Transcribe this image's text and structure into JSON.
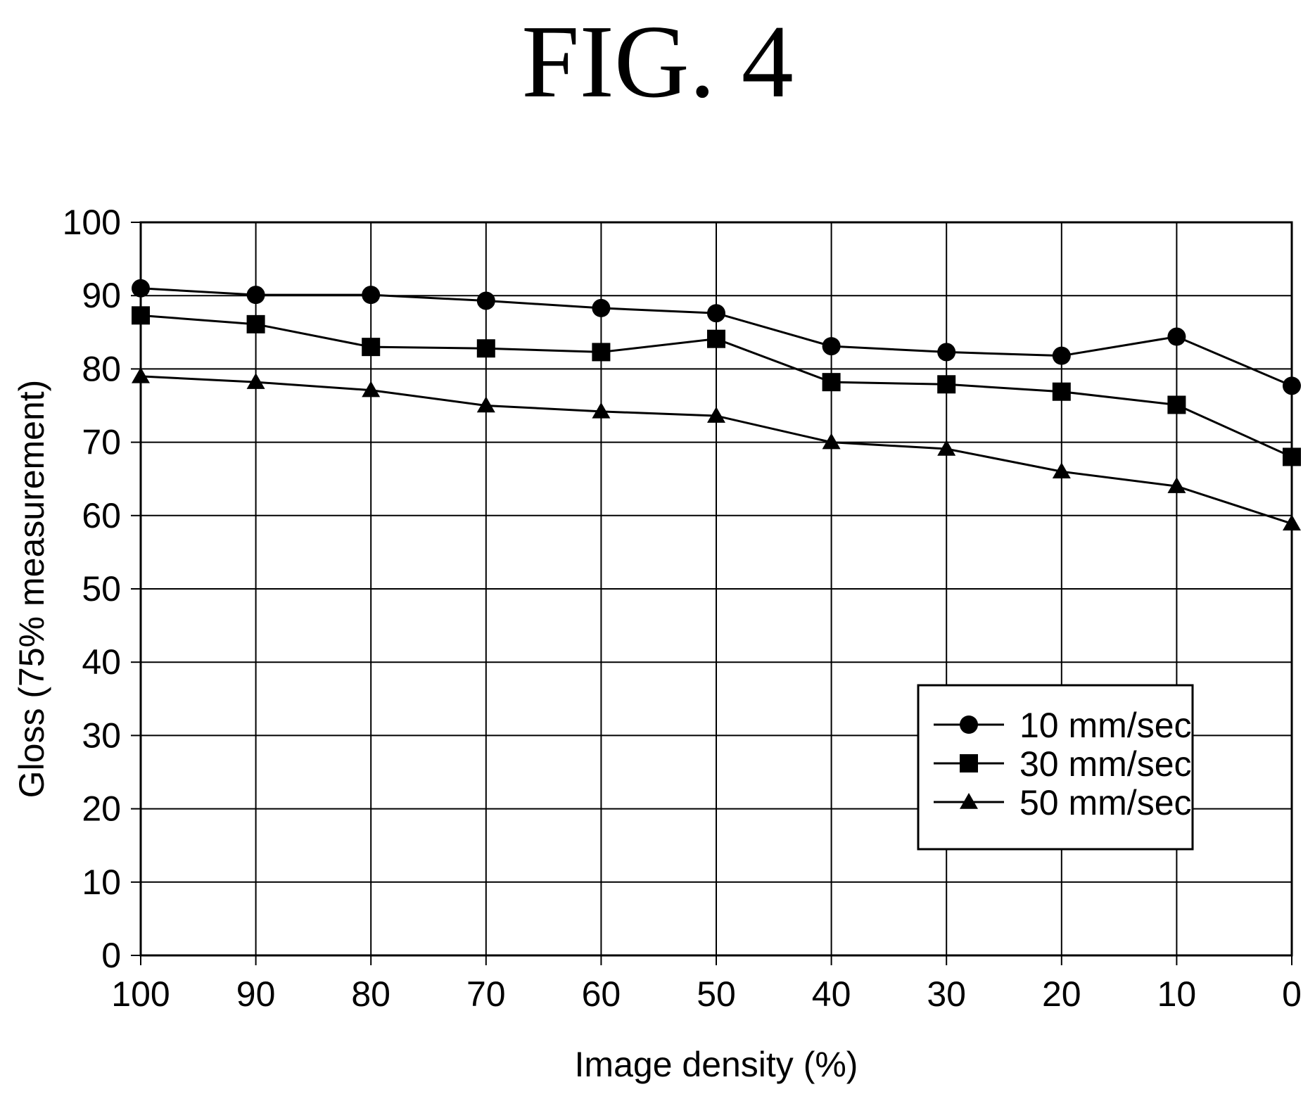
{
  "figure_label": "FIG.  4",
  "chart_data": {
    "type": "line",
    "title": "",
    "xlabel": "Image density (%)",
    "ylabel": "Gloss (75% measurement)",
    "x": [
      100,
      90,
      80,
      70,
      60,
      50,
      40,
      30,
      20,
      10,
      0
    ],
    "x_reversed": true,
    "xlim": [
      100,
      0
    ],
    "ylim": [
      0,
      100
    ],
    "x_ticks": [
      "100",
      "90",
      "80",
      "70",
      "60",
      "50",
      "40",
      "30",
      "20",
      "10",
      "0"
    ],
    "y_ticks": [
      "0",
      "10",
      "20",
      "30",
      "40",
      "50",
      "60",
      "70",
      "80",
      "90",
      "100"
    ],
    "grid": true,
    "legend_position": "lower-right",
    "series": [
      {
        "name": "10 mm/sec",
        "marker": "circle",
        "values": [
          91,
          90.1,
          90.1,
          89.3,
          88.3,
          87.6,
          83.1,
          82.3,
          81.8,
          84.4,
          77.7
        ]
      },
      {
        "name": "30 mm/sec",
        "marker": "square",
        "values": [
          87.3,
          86.1,
          83,
          82.8,
          82.3,
          84.1,
          78.2,
          77.9,
          76.9,
          75.1,
          68
        ]
      },
      {
        "name": "50 mm/sec",
        "marker": "triangle",
        "values": [
          79,
          78.2,
          77.1,
          75,
          74.2,
          73.6,
          70,
          69.1,
          66,
          64,
          58.9
        ]
      }
    ]
  }
}
